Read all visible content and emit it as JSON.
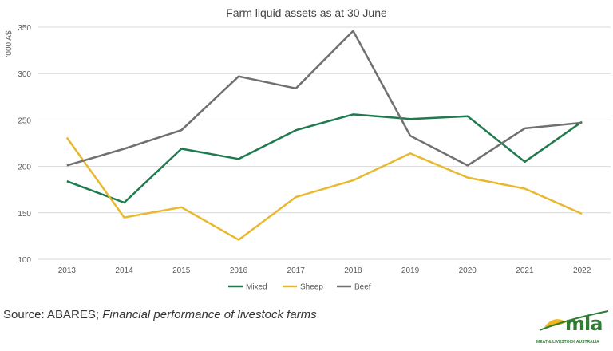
{
  "chart_data": {
    "type": "line",
    "title": "Farm liquid assets as at 30 June",
    "ylabel": "'000 A$",
    "xlabel": "",
    "categories": [
      "2013",
      "2014",
      "2015",
      "2016",
      "2017",
      "2018",
      "2019",
      "2020",
      "2021",
      "2022"
    ],
    "ylim": [
      100,
      350
    ],
    "yticks": [
      100,
      150,
      200,
      250,
      300,
      350
    ],
    "grid": true,
    "legend": "bottom",
    "series": [
      {
        "name": "Mixed",
        "color": "#1f7a4d",
        "values": [
          184,
          161,
          219,
          208,
          239,
          256,
          251,
          254,
          205,
          248
        ]
      },
      {
        "name": "Sheep",
        "color": "#e8b92e",
        "values": [
          231,
          145,
          156,
          121,
          167,
          185,
          214,
          188,
          176,
          149
        ]
      },
      {
        "name": "Beef",
        "color": "#707070",
        "values": [
          201,
          219,
          239,
          297,
          284,
          346,
          233,
          201,
          241,
          247
        ]
      }
    ]
  },
  "source": {
    "prefix": "Source: ABARES; ",
    "italic": "Financial performance of livestock farms"
  },
  "logo": {
    "word": "mla",
    "tagline": "MEAT & LIVESTOCK AUSTRALIA"
  }
}
